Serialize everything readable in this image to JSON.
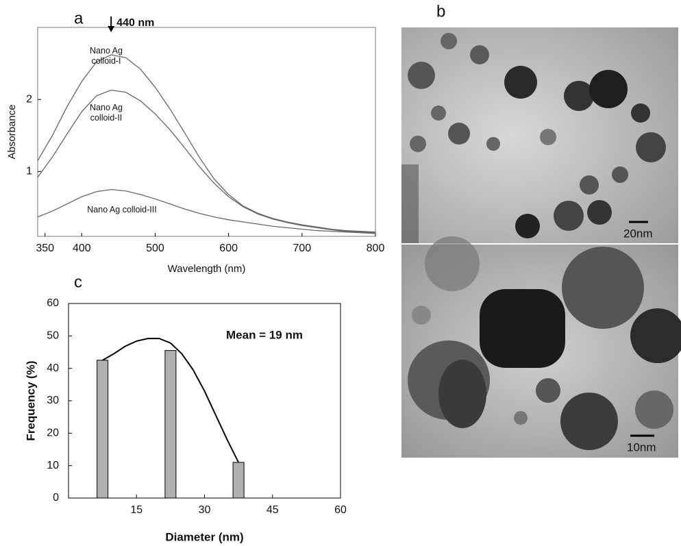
{
  "chart_data": [
    {
      "type": "line",
      "panel_label": "a",
      "x": [
        340,
        360,
        380,
        400,
        420,
        440,
        460,
        480,
        500,
        520,
        540,
        560,
        580,
        600,
        620,
        640,
        660,
        680,
        700,
        720,
        740,
        760,
        780,
        800
      ],
      "series": [
        {
          "name": "Nano Ag colloid-I",
          "color": "#666666",
          "values": [
            1.15,
            1.5,
            1.9,
            2.25,
            2.52,
            2.62,
            2.58,
            2.42,
            2.17,
            1.87,
            1.54,
            1.2,
            0.9,
            0.68,
            0.52,
            0.42,
            0.35,
            0.3,
            0.26,
            0.23,
            0.2,
            0.18,
            0.17,
            0.16
          ]
        },
        {
          "name": "Nano Ag colloid-II",
          "color": "#666666",
          "values": [
            0.92,
            1.2,
            1.52,
            1.83,
            2.05,
            2.13,
            2.1,
            1.98,
            1.8,
            1.58,
            1.33,
            1.07,
            0.84,
            0.65,
            0.51,
            0.41,
            0.34,
            0.29,
            0.25,
            0.22,
            0.19,
            0.17,
            0.16,
            0.15
          ]
        },
        {
          "name": "Nano Ag colloid-III",
          "color": "#666666",
          "values": [
            0.37,
            0.45,
            0.55,
            0.65,
            0.72,
            0.75,
            0.73,
            0.68,
            0.62,
            0.55,
            0.48,
            0.42,
            0.37,
            0.33,
            0.3,
            0.27,
            0.24,
            0.22,
            0.2,
            0.18,
            0.17,
            0.16,
            0.15,
            0.14
          ]
        }
      ],
      "xlim": [
        340,
        800
      ],
      "xticks": [
        350,
        400,
        500,
        600,
        700,
        800
      ],
      "ylim": [
        0.1,
        3.0
      ],
      "yticks": [
        1,
        2
      ],
      "xlabel": "Wavelength (nm)",
      "ylabel": "Absorbance",
      "annotation": {
        "text": "440 nm",
        "x": 440
      }
    },
    {
      "type": "bar",
      "panel_label": "c",
      "x": [
        7.5,
        22.5,
        37.5
      ],
      "values": [
        42.5,
        45.5,
        11
      ],
      "color": "#b0b0b0",
      "fit_curve": {
        "x": [
          7.5,
          10,
          12.5,
          15,
          17.5,
          20,
          22.5,
          25,
          27.5,
          30,
          32.5,
          35,
          37.5
        ],
        "values": [
          42.5,
          44.5,
          46.8,
          48.4,
          49.2,
          49.2,
          47.8,
          44.5,
          39.5,
          33,
          25.5,
          18,
          11
        ],
        "color": "#000000"
      },
      "xlim": [
        0,
        60
      ],
      "xticks": [
        15,
        30,
        45,
        60
      ],
      "ylim": [
        0,
        60
      ],
      "yticks": [
        0,
        10,
        20,
        30,
        40,
        50,
        60
      ],
      "xlabel": "Diameter (nm)",
      "ylabel": "Frequency (%)",
      "annotation": {
        "text": "Mean = 19 nm"
      }
    }
  ],
  "images": {
    "panel_label": "b",
    "scale_bars": [
      "20nm",
      "10nm"
    ]
  }
}
